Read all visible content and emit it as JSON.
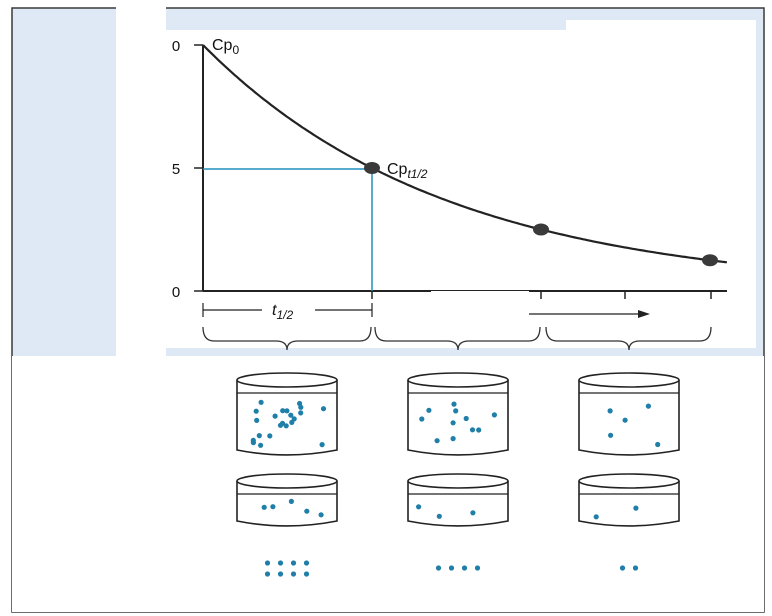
{
  "colors": {
    "panel_bg": "#dfe8f5",
    "curve": "#222222",
    "guide": "#1f8fbf",
    "dots": "#1f7fa8",
    "mask": "#ffffff"
  },
  "chart_data": {
    "type": "line",
    "y_ticks": [
      "0",
      "5",
      "0"
    ],
    "ylim": [
      0,
      10
    ],
    "x": [
      0,
      1,
      2,
      3
    ],
    "values": [
      10,
      5,
      2.5,
      1.25
    ],
    "point_labels": {
      "start": {
        "base": "Cp",
        "sub": "0"
      },
      "half": {
        "base": "Cp",
        "sub": "t1/2"
      }
    }
  },
  "interval": {
    "base": "t",
    "sub": "1/2"
  },
  "containers": {
    "large": [
      {
        "dots": 22
      },
      {
        "dots": 11
      },
      {
        "dots": 5
      }
    ],
    "small": [
      {
        "dots": 5
      },
      {
        "dots": 3
      },
      {
        "dots": 2
      }
    ],
    "loose": [
      {
        "dots": 8
      },
      {
        "dots": 4
      },
      {
        "dots": 2
      }
    ]
  }
}
